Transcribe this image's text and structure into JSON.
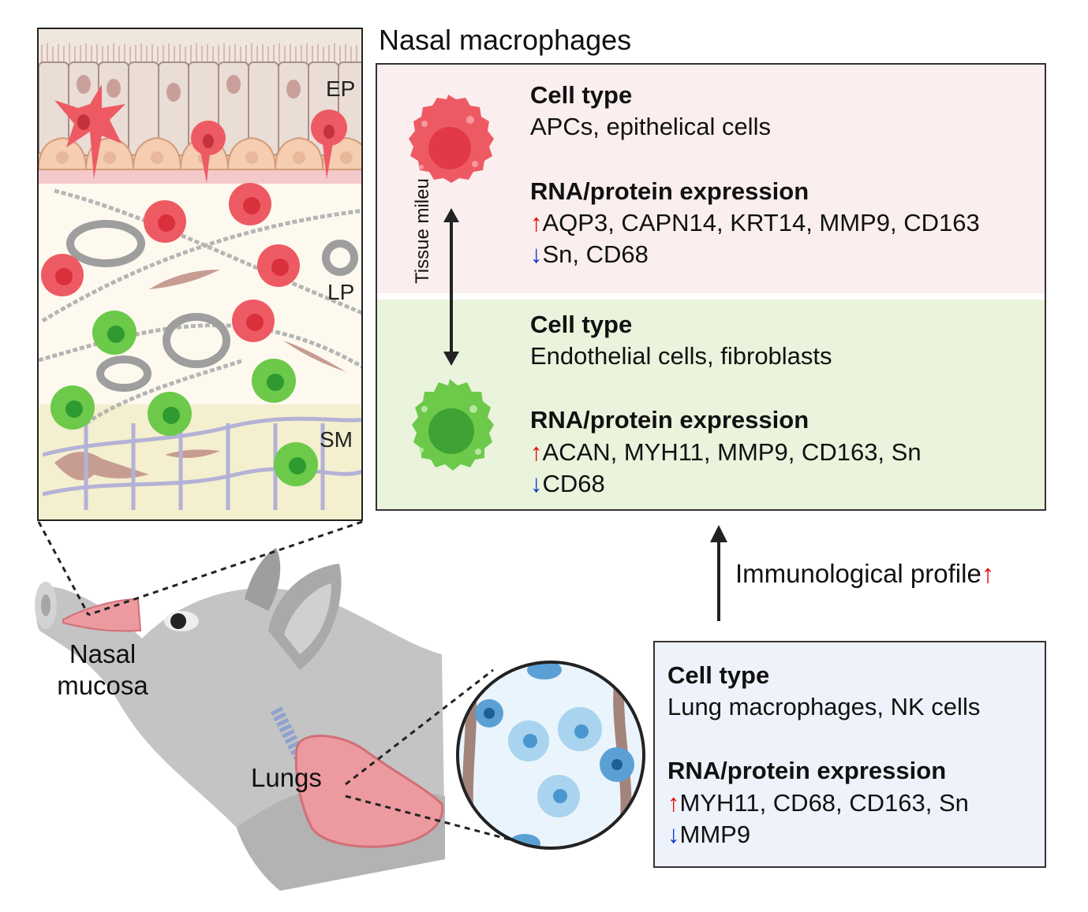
{
  "title": "Nasal macrophages",
  "tissue_layers": {
    "ep": "EP",
    "lp": "LP",
    "sm": "SM"
  },
  "nasal_red": {
    "cell_type_heading": "Cell type",
    "cell_types": "APCs, epithelical cells",
    "expression_heading": "RNA/protein expression",
    "up_arrow": "↑",
    "up_markers": "AQP3, CAPN14, KRT14, MMP9, CD163",
    "down_arrow": "↓",
    "down_markers": "Sn,  CD68"
  },
  "nasal_green": {
    "cell_type_heading": "Cell type",
    "cell_types": "Endothelial cells, fibroblasts",
    "expression_heading": "RNA/protein expression",
    "up_arrow": "↑",
    "up_markers": "ACAN, MYH11, MMP9, CD163, Sn",
    "down_arrow": "↓",
    "down_markers": "CD68"
  },
  "tissue_milieu": "Tissue mileu",
  "immunological_profile": {
    "label": "Immunological profile",
    "arrow": "↑"
  },
  "lung": {
    "cell_type_heading": "Cell type",
    "cell_types": "Lung macrophages, NK cells",
    "expression_heading": "RNA/protein expression",
    "up_arrow": "↑",
    "up_markers": "MYH11, CD68, CD163, Sn",
    "down_arrow": "↓",
    "down_markers": "MMP9"
  },
  "callouts": {
    "nasal_mucosa_line1": "Nasal",
    "nasal_mucosa_line2": "mucosa",
    "lungs": "Lungs"
  },
  "colors": {
    "red_cell": "#ec5a63",
    "green_cell": "#6cc94a",
    "blue_cell": "#a8d4ef",
    "up_arrow": "#e60000",
    "down_arrow": "#0033cc",
    "pig_gray": "#bdbdbd",
    "lung_pink": "#ec9aa0"
  }
}
